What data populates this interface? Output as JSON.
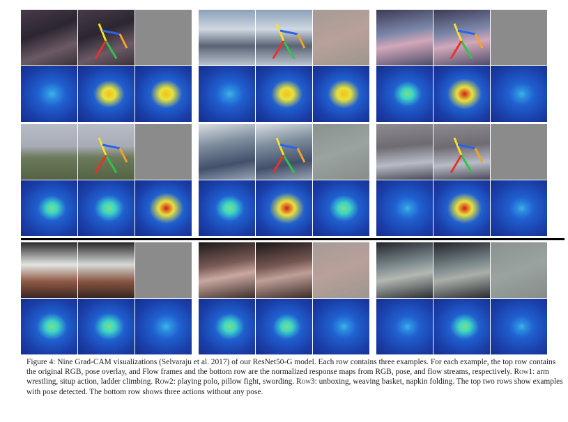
{
  "figure": {
    "caption": {
      "label": "Figure 4:",
      "text_1": " Nine Grad-CAM visualizations (Selvaraju et al. 2017) of our ResNet50-G model. Each row contains three examples. For each example, the top row contains the original RGB, pose overlay, and Flow frames and the bottom row are the normalized response maps from RGB, pose, and flow streams, respectively. ",
      "row1_label": "Row1",
      "row1_text": ": arm wrestling, situp action, ladder climbing. ",
      "row2_label": "Row2",
      "row2_text": ": playing polo, pillow fight, swording. ",
      "row3_label": "Row3",
      "row3_text": ": unboxing, weaving basket, napkin folding. The top two rows show examples with pose detected. The bottom row shows three actions without any pose."
    },
    "panels": [
      {
        "name": "arm-wrestling",
        "row": 1,
        "scene": "p-dark",
        "flow": "flow",
        "heat": [
          0.38,
          0.65,
          0.72
        ],
        "pose": true
      },
      {
        "name": "situp-action",
        "row": 1,
        "scene": "p-gym",
        "flow": "flow-warm",
        "heat": [
          0.35,
          0.7,
          0.75
        ],
        "pose": true
      },
      {
        "name": "ladder-climbing",
        "row": 1,
        "scene": "p-bed",
        "flow": "flow",
        "heat": [
          0.45,
          0.95,
          0.2
        ],
        "pose": true
      },
      {
        "name": "playing-polo",
        "row": 2,
        "scene": "p-field",
        "flow": "flow",
        "heat": [
          0.45,
          0.55,
          0.95
        ],
        "pose": true
      },
      {
        "name": "pillow-fight",
        "row": 2,
        "scene": "p-room",
        "flow": "flow-cyan",
        "heat": [
          0.5,
          1.0,
          0.55
        ],
        "pose": true
      },
      {
        "name": "swording",
        "row": 2,
        "scene": "p-fence",
        "flow": "flow",
        "heat": [
          0.2,
          0.95,
          0.1
        ],
        "pose": true
      },
      {
        "name": "unboxing",
        "row": 3,
        "scene": "p-box",
        "flow": "flow",
        "heat": [
          0.6,
          0.6,
          0.35
        ],
        "pose": false
      },
      {
        "name": "weaving-basket",
        "row": 3,
        "scene": "p-bask",
        "flow": "flow-warm",
        "heat": [
          0.55,
          0.45,
          0.2
        ],
        "pose": false
      },
      {
        "name": "napkin-folding",
        "row": 3,
        "scene": "p-napk",
        "flow": "flow-cyan",
        "heat": [
          0.1,
          0.5,
          0.1
        ],
        "pose": false
      }
    ]
  }
}
